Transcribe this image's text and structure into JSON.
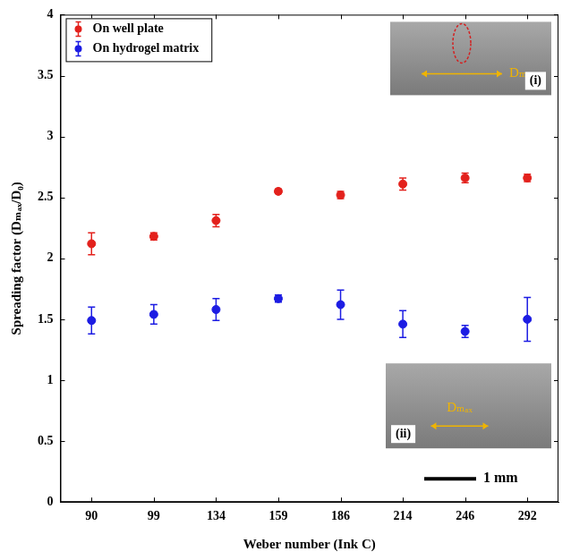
{
  "chart_data": {
    "type": "scatter",
    "x_label": "Weber number (Ink C)",
    "y_label": "Spreading factor (Dₘₐₓ/D₀)",
    "categories": [
      "90",
      "99",
      "134",
      "159",
      "186",
      "214",
      "246",
      "292"
    ],
    "series": [
      {
        "name": "On well plate",
        "color": "#e3211c",
        "values": [
          2.12,
          2.18,
          2.31,
          2.55,
          2.52,
          2.61,
          2.66,
          2.66
        ],
        "error": [
          0.09,
          0.03,
          0.05,
          0.02,
          0.03,
          0.05,
          0.04,
          0.03
        ]
      },
      {
        "name": "On hydrogel matrix",
        "color": "#1c1ce3",
        "values": [
          1.49,
          1.54,
          1.58,
          1.67,
          1.62,
          1.46,
          1.4,
          1.5
        ],
        "error": [
          0.11,
          0.08,
          0.09,
          0.03,
          0.12,
          0.11,
          0.05,
          0.18
        ]
      }
    ],
    "ylim": [
      0,
      4
    ],
    "yticks": [
      0,
      0.5,
      1,
      1.5,
      2,
      2.5,
      3,
      3.5,
      4
    ],
    "grid": false,
    "legend": "top-left",
    "marker": "circle",
    "annotations": [
      {
        "text": "(i)"
      },
      {
        "text": "Dₘₐₓ"
      },
      {
        "text": "(ii)"
      },
      {
        "text": "Dₘₐₓ"
      },
      {
        "text": "1 mm"
      }
    ]
  }
}
